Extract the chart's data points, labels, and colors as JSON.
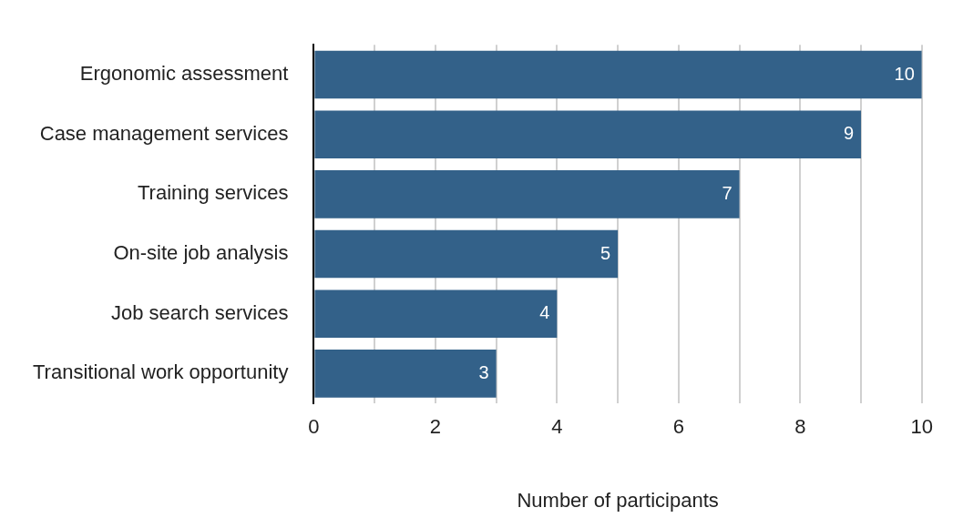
{
  "chart_data": {
    "type": "bar",
    "orientation": "horizontal",
    "xlabel": "Number of participants",
    "categories": [
      "Ergonomic assessment",
      "Case management services",
      "Training services",
      "On-site job analysis",
      "Job search services",
      "Transitional work opportunity"
    ],
    "values": [
      10,
      9,
      7,
      5,
      4,
      3
    ],
    "color": "#336189",
    "xlim": [
      0,
      10
    ],
    "xticks": [
      0,
      {
        "value": 1,
        "label": null
      },
      2,
      {
        "value": 3,
        "label": null
      },
      4,
      {
        "value": 5,
        "label": null
      },
      6,
      {
        "value": 7,
        "label": null
      },
      8,
      {
        "value": 9,
        "label": null
      },
      10
    ],
    "grid": "x",
    "data_labels": true,
    "legend": false
  }
}
